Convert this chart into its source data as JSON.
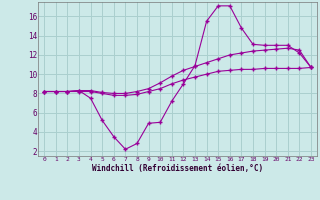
{
  "xlabel": "Windchill (Refroidissement éolien,°C)",
  "background_color": "#cce9e8",
  "grid_color": "#aacfce",
  "line_color": "#990099",
  "x_values": [
    0,
    1,
    2,
    3,
    4,
    5,
    6,
    7,
    8,
    9,
    10,
    11,
    12,
    13,
    14,
    15,
    16,
    17,
    18,
    19,
    20,
    21,
    22,
    23
  ],
  "line1": [
    8.2,
    8.2,
    8.2,
    8.3,
    7.5,
    5.2,
    3.5,
    2.2,
    2.8,
    4.9,
    5.0,
    7.2,
    9.0,
    10.9,
    15.5,
    17.1,
    17.1,
    14.8,
    13.1,
    13.0,
    13.0,
    13.0,
    12.2,
    10.7
  ],
  "line2": [
    8.2,
    8.2,
    8.2,
    8.3,
    8.3,
    8.1,
    8.0,
    8.0,
    8.2,
    8.5,
    9.1,
    9.8,
    10.4,
    10.8,
    11.2,
    11.6,
    12.0,
    12.2,
    12.4,
    12.5,
    12.6,
    12.7,
    12.5,
    10.7
  ],
  "line3": [
    8.2,
    8.2,
    8.2,
    8.2,
    8.2,
    8.0,
    7.8,
    7.8,
    7.9,
    8.2,
    8.5,
    9.0,
    9.4,
    9.7,
    10.0,
    10.3,
    10.4,
    10.5,
    10.5,
    10.6,
    10.6,
    10.6,
    10.6,
    10.7
  ],
  "ylim": [
    1.5,
    17.5
  ],
  "yticks": [
    2,
    4,
    6,
    8,
    10,
    12,
    14,
    16
  ],
  "xlim": [
    -0.5,
    23.5
  ],
  "xticks": [
    0,
    1,
    2,
    3,
    4,
    5,
    6,
    7,
    8,
    9,
    10,
    11,
    12,
    13,
    14,
    15,
    16,
    17,
    18,
    19,
    20,
    21,
    22,
    23
  ],
  "figsize": [
    3.2,
    2.0
  ],
  "dpi": 100
}
